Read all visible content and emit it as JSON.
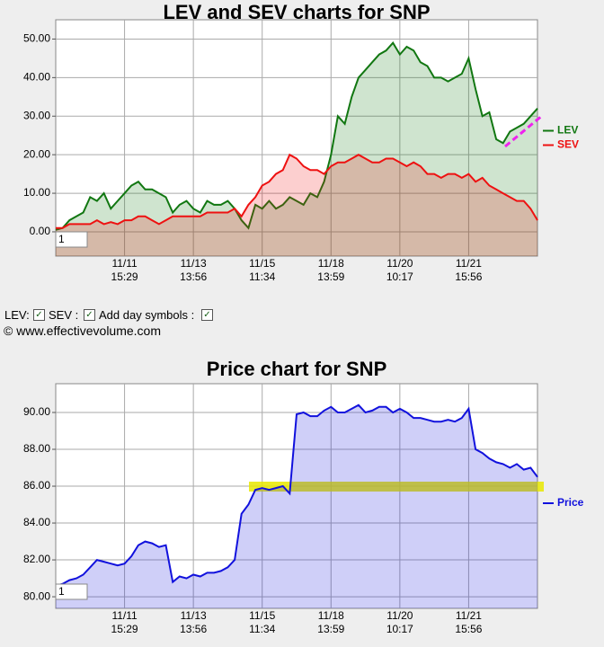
{
  "chart_data": [
    {
      "type": "line",
      "title": "LEV and SEV charts for SNP",
      "x": [
        0,
        1,
        2,
        3,
        4,
        5,
        6,
        7,
        8,
        9,
        10,
        11,
        12,
        13,
        14,
        15,
        16,
        17,
        18,
        19,
        20,
        21,
        22,
        23,
        24,
        25,
        26,
        27,
        28,
        29,
        30,
        31,
        32,
        33,
        34,
        35,
        36,
        37,
        38,
        39,
        40,
        41,
        42,
        43,
        44,
        45,
        46,
        47,
        48,
        49,
        50,
        51,
        52,
        53,
        54,
        55,
        56,
        57,
        58,
        59,
        60,
        61,
        62,
        63,
        64,
        65,
        66,
        67,
        68,
        69,
        70
      ],
      "series": [
        {
          "name": "LEV",
          "color": "#117711",
          "values": [
            0.5,
            1,
            3,
            4,
            5,
            9,
            8,
            10,
            6,
            8,
            10,
            12,
            13,
            11,
            11,
            10,
            9,
            5,
            7,
            8,
            6,
            5,
            8,
            7,
            7,
            8,
            6,
            3,
            1,
            7,
            6,
            8,
            6,
            7,
            9,
            8,
            7,
            10,
            9,
            13,
            20,
            30,
            28,
            35,
            40,
            42,
            44,
            46,
            47,
            49,
            46,
            48,
            47,
            44,
            43,
            40,
            40,
            39,
            40,
            41,
            45,
            37,
            30,
            31,
            24,
            23,
            26,
            27,
            28,
            30,
            32
          ]
        },
        {
          "name": "SEV",
          "color": "#ee1111",
          "values": [
            1,
            1,
            2,
            2,
            2,
            2,
            3,
            2,
            2.5,
            2,
            3,
            3,
            4,
            4,
            3,
            2,
            3,
            4,
            4,
            4,
            4,
            4,
            5,
            5,
            5,
            5,
            6,
            4,
            7,
            9,
            12,
            13,
            15,
            16,
            20,
            19,
            17,
            16,
            16,
            15,
            17,
            18,
            18,
            19,
            20,
            19,
            18,
            18,
            19,
            19,
            18,
            17,
            18,
            17,
            15,
            15,
            14,
            15,
            15,
            14,
            15,
            13,
            14,
            12,
            11,
            10,
            9,
            8,
            8,
            6,
            3
          ]
        }
      ],
      "xlim": [
        0,
        70
      ],
      "xticks": [
        {
          "value": 10,
          "label": "11/11",
          "sublabel": "15:29"
        },
        {
          "value": 20,
          "label": "11/13",
          "sublabel": "13:56"
        },
        {
          "value": 30,
          "label": "11/15",
          "sublabel": "11:34"
        },
        {
          "value": 40,
          "label": "11/18",
          "sublabel": "13:59"
        },
        {
          "value": 50,
          "label": "11/20",
          "sublabel": "10:17"
        },
        {
          "value": 60,
          "label": "11/21",
          "sublabel": "15:56"
        }
      ],
      "ylim": [
        -6.3,
        55
      ],
      "yticks": [
        {
          "value": 0,
          "label": "0.00"
        },
        {
          "value": 10,
          "label": "10.00"
        },
        {
          "value": 20,
          "label": "20.00"
        },
        {
          "value": 30,
          "label": "30.00"
        },
        {
          "value": 40,
          "label": "40.00"
        },
        {
          "value": 50,
          "label": "50.00"
        }
      ],
      "grid": true,
      "legend": "right",
      "input": "1"
    },
    {
      "type": "line",
      "title": "Price chart for SNP",
      "x": [
        0,
        1,
        2,
        3,
        4,
        5,
        6,
        7,
        8,
        9,
        10,
        11,
        12,
        13,
        14,
        15,
        16,
        17,
        18,
        19,
        20,
        21,
        22,
        23,
        24,
        25,
        26,
        27,
        28,
        29,
        30,
        31,
        32,
        33,
        34,
        35,
        36,
        37,
        38,
        39,
        40,
        41,
        42,
        43,
        44,
        45,
        46,
        47,
        48,
        49,
        50,
        51,
        52,
        53,
        54,
        55,
        56,
        57,
        58,
        59,
        60,
        61,
        62,
        63,
        64,
        65,
        66,
        67,
        68,
        69,
        70
      ],
      "series": [
        {
          "name": "Price",
          "color": "#1111dd",
          "values": [
            80.6,
            80.7,
            80.9,
            81.0,
            81.2,
            81.6,
            82.0,
            81.9,
            81.8,
            81.7,
            81.8,
            82.2,
            82.8,
            83.0,
            82.9,
            82.7,
            82.8,
            80.8,
            81.1,
            81.0,
            81.2,
            81.1,
            81.3,
            81.3,
            81.4,
            81.6,
            82.0,
            84.5,
            85.0,
            85.8,
            85.9,
            85.8,
            85.9,
            86.0,
            85.6,
            89.9,
            90.0,
            89.8,
            89.8,
            90.1,
            90.3,
            90.0,
            90.0,
            90.2,
            90.4,
            90.0,
            90.1,
            90.3,
            90.3,
            90.0,
            90.2,
            90.0,
            89.7,
            89.7,
            89.6,
            89.5,
            89.5,
            89.6,
            89.5,
            89.7,
            90.2,
            88.0,
            87.8,
            87.5,
            87.3,
            87.2,
            87.0,
            87.2,
            86.9,
            87.0,
            86.5
          ]
        }
      ],
      "xlim": [
        0,
        70
      ],
      "xticks": [
        {
          "value": 10,
          "label": "11/11",
          "sublabel": "15:29"
        },
        {
          "value": 20,
          "label": "11/13",
          "sublabel": "13:56"
        },
        {
          "value": 30,
          "label": "11/15",
          "sublabel": "11:34"
        },
        {
          "value": 40,
          "label": "11/18",
          "sublabel": "13:59"
        },
        {
          "value": 50,
          "label": "11/20",
          "sublabel": "10:17"
        },
        {
          "value": 60,
          "label": "11/21",
          "sublabel": "15:56"
        }
      ],
      "ylim": [
        79.37,
        91.56
      ],
      "yticks": [
        {
          "value": 80,
          "label": "80.00"
        },
        {
          "value": 82,
          "label": "82.00"
        },
        {
          "value": 84,
          "label": "84.00"
        },
        {
          "value": 86,
          "label": "86.00"
        },
        {
          "value": 88,
          "label": "88.00"
        },
        {
          "value": 90,
          "label": "90.00"
        }
      ],
      "grid": true,
      "legend": "right",
      "input": "1"
    }
  ],
  "controls": {
    "lev": "LEV:",
    "sev": "SEV :",
    "day_symbols": "Add day symbols :"
  },
  "copyright": "© www.effectivevolume.com"
}
